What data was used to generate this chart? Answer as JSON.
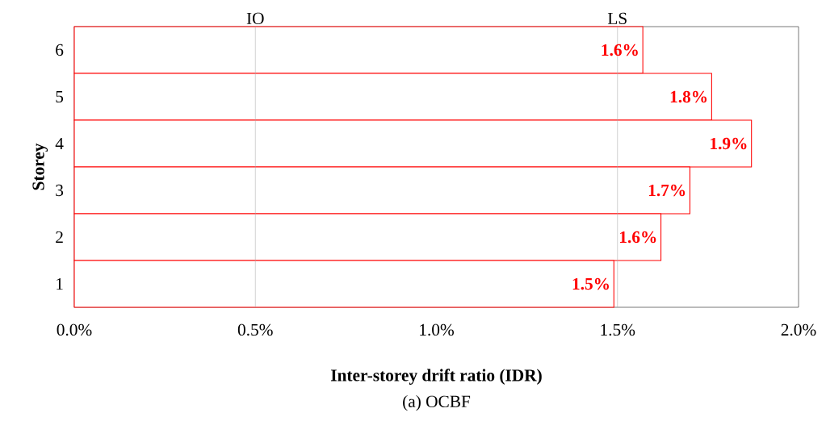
{
  "chart_data": {
    "type": "bar",
    "orientation": "horizontal",
    "xlabel": "Inter-storey drift ratio (IDR)",
    "ylabel": "Storey",
    "categories": [
      "6",
      "5",
      "4",
      "3",
      "2",
      "1"
    ],
    "values": [
      1.57,
      1.76,
      1.87,
      1.7,
      1.62,
      1.49
    ],
    "value_labels": [
      "1.6%",
      "1.8%",
      "1.9%",
      "1.7%",
      "1.6%",
      "1.5%"
    ],
    "color": "#ff0000",
    "xlim": [
      0,
      2
    ],
    "xticks": [
      {
        "value": 0,
        "label": "0.0%"
      },
      {
        "value": 0.5,
        "label": "0.5%"
      },
      {
        "value": 1,
        "label": "1.0%"
      },
      {
        "value": 1.5,
        "label": "1.5%"
      },
      {
        "value": 2,
        "label": "2.0%"
      }
    ],
    "ref_lines": [
      {
        "axis": "x",
        "value": 0.5,
        "label": "IO",
        "color": "#a6a6a6"
      },
      {
        "axis": "x",
        "value": 1.5,
        "label": "LS",
        "color": "#a6a6a6"
      }
    ],
    "annotations": [
      "(a) OCBF"
    ],
    "grid": false
  }
}
